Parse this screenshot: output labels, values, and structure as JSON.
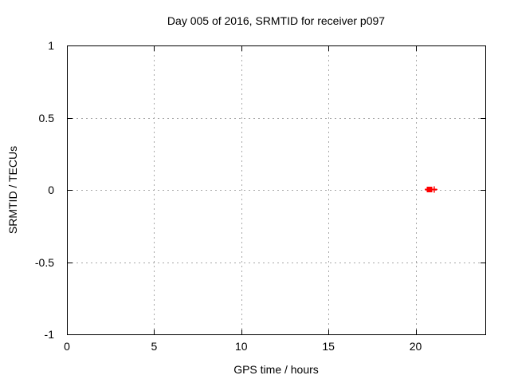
{
  "page": {
    "background": "#ffffff"
  },
  "chart_data": {
    "type": "scatter",
    "title": "Day 005 of 2016, SRMTID for receiver p097",
    "xlabel": "GPS time / hours",
    "ylabel": "SRMTID / TECUs",
    "xlim": [
      0,
      24
    ],
    "ylim": [
      -1,
      1
    ],
    "xticks": [
      0,
      5,
      10,
      15,
      20
    ],
    "yticks": [
      -1,
      -0.5,
      0,
      0.5,
      1
    ],
    "grid": true,
    "grid_color": "#a8a8a8",
    "axis_color": "#000000",
    "legend": "none",
    "series": [
      {
        "name": "SRMTID",
        "color": "#ff0000",
        "points": [
          {
            "x": 20.8,
            "y": 0.0,
            "marker": "filled-square",
            "xerr": [
              20.53,
              21.21
            ]
          },
          {
            "x": 21.07,
            "y": 0.0,
            "marker": "plus"
          }
        ]
      }
    ]
  }
}
